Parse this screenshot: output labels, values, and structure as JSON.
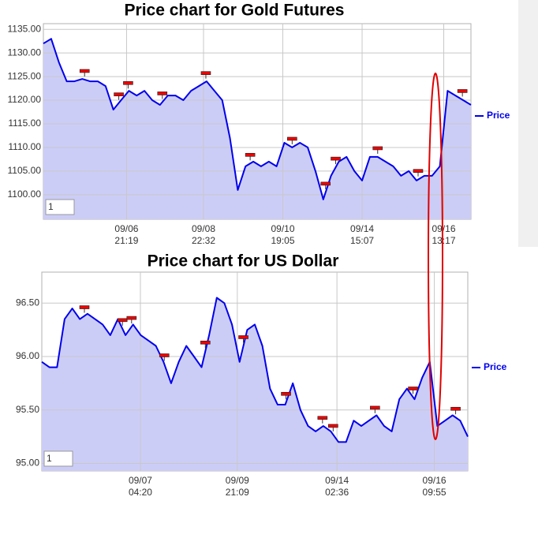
{
  "chart_data": [
    {
      "type": "line",
      "title": "Price chart for Gold Futures",
      "input_value": "1",
      "grid": true,
      "legend": "right",
      "x": [
        0,
        1,
        2,
        3,
        4,
        5,
        6,
        7,
        8,
        9,
        10,
        11,
        12,
        13,
        14,
        15,
        16,
        17,
        18,
        19,
        20,
        21,
        22,
        23,
        24,
        25,
        26,
        27,
        28,
        29,
        30,
        31,
        32,
        33,
        34,
        35,
        36,
        37,
        38,
        39,
        40,
        41,
        42,
        43,
        44,
        45,
        46,
        47,
        48,
        49,
        50,
        51,
        52,
        53,
        54,
        55
      ],
      "xlim": [
        0,
        55
      ],
      "xticks": [
        {
          "value": 10.7,
          "label": [
            "09/06",
            "21:19"
          ]
        },
        {
          "value": 20.6,
          "label": [
            "09/08",
            "22:32"
          ]
        },
        {
          "value": 30.8,
          "label": [
            "09/10",
            "19:05"
          ]
        },
        {
          "value": 41.0,
          "label": [
            "09/14",
            "15:07"
          ]
        },
        {
          "value": 51.5,
          "label": [
            "09/16",
            "13:17"
          ]
        }
      ],
      "ylim": [
        1094.8,
        1136.2
      ],
      "yticks": [
        {
          "value": 1100,
          "label": "1100.00"
        },
        {
          "value": 1105,
          "label": "1105.00"
        },
        {
          "value": 1110,
          "label": "1110.00"
        },
        {
          "value": 1115,
          "label": "1115.00"
        },
        {
          "value": 1120,
          "label": "1120.00"
        },
        {
          "value": 1125,
          "label": "1125.00"
        },
        {
          "value": 1130,
          "label": "1130.00"
        },
        {
          "value": 1135,
          "label": "1135.00"
        }
      ],
      "events": [
        5.3,
        9.7,
        10.9,
        15.3,
        20.9,
        26.6,
        32.0,
        36.3,
        37.6,
        43.0,
        48.2,
        53.9
      ],
      "series": [
        {
          "name": "Price",
          "color": "#0000ee",
          "fill": "#cccdf7",
          "values": [
            1132,
            1133,
            1128,
            1124,
            1124,
            1124.5,
            1124,
            1124,
            1123,
            1118,
            1120,
            1122,
            1121,
            1122,
            1120,
            1119,
            1121,
            1121,
            1120,
            1122,
            1123,
            1124,
            1122,
            1120,
            1112,
            1101,
            1106,
            1107,
            1106,
            1107,
            1106,
            1111,
            1110,
            1111,
            1110,
            1105,
            1099,
            1104,
            1107,
            1108,
            1105,
            1103,
            1108,
            1108,
            1107,
            1106,
            1104,
            1105,
            1103,
            1104,
            1104,
            1106,
            1122,
            1121,
            1120,
            1119
          ]
        }
      ]
    },
    {
      "type": "line",
      "title": "Price chart for US Dollar",
      "input_value": "1",
      "grid": true,
      "legend": "right",
      "x": [
        0,
        1,
        2,
        3,
        4,
        5,
        6,
        7,
        8,
        9,
        10,
        11,
        12,
        13,
        14,
        15,
        16,
        17,
        18,
        19,
        20,
        21,
        22,
        23,
        24,
        25,
        26,
        27,
        28,
        29,
        30,
        31,
        32,
        33,
        34,
        35,
        36,
        37,
        38,
        39,
        40,
        41,
        42,
        43,
        44,
        45,
        46,
        47,
        48,
        49,
        50,
        51,
        52,
        53,
        54,
        55,
        56
      ],
      "xlim": [
        0,
        56
      ],
      "xticks": [
        {
          "value": 12.96,
          "label": [
            "09/07",
            "04:20"
          ]
        },
        {
          "value": 25.7,
          "label": [
            "09/09",
            "21:09"
          ]
        },
        {
          "value": 38.8,
          "label": [
            "09/14",
            "02:36"
          ]
        },
        {
          "value": 51.6,
          "label": [
            "09/16",
            "09:55"
          ]
        }
      ],
      "ylim": [
        94.93,
        96.79
      ],
      "yticks": [
        {
          "value": 95,
          "label": "95.00"
        },
        {
          "value": 95.5,
          "label": "95.50"
        },
        {
          "value": 96,
          "label": "96.00"
        },
        {
          "value": 96.5,
          "label": "96.50"
        }
      ],
      "events": [
        5.6,
        10.6,
        11.8,
        16.1,
        21.5,
        26.5,
        32.1,
        36.9,
        38.3,
        43.8,
        48.8,
        54.4
      ],
      "series": [
        {
          "name": "Price",
          "color": "#0000ee",
          "fill": "#cccdf7",
          "values": [
            95.95,
            95.9,
            95.9,
            96.35,
            96.45,
            96.35,
            96.4,
            96.35,
            96.3,
            96.2,
            96.35,
            96.2,
            96.3,
            96.2,
            96.15,
            96.1,
            95.95,
            95.75,
            95.95,
            96.1,
            96.0,
            95.9,
            96.2,
            96.55,
            96.5,
            96.3,
            95.95,
            96.25,
            96.3,
            96.1,
            95.7,
            95.55,
            95.55,
            95.75,
            95.5,
            95.35,
            95.3,
            95.35,
            95.3,
            95.2,
            95.2,
            95.4,
            95.35,
            95.4,
            95.45,
            95.35,
            95.3,
            95.6,
            95.7,
            95.6,
            95.8,
            95.95,
            95.35,
            95.4,
            95.45,
            95.4,
            95.25
          ]
        }
      ]
    }
  ]
}
